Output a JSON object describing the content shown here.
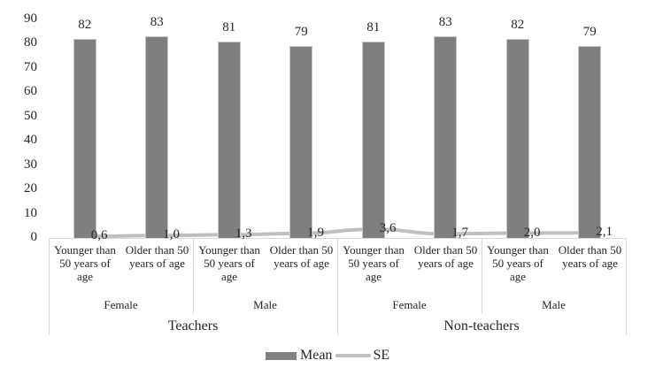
{
  "chart_data": {
    "type": "bar",
    "title": "",
    "xlabel": "",
    "ylabel": "",
    "ylim": [
      0,
      90
    ],
    "yticks": [
      0,
      10,
      20,
      30,
      40,
      50,
      60,
      70,
      80,
      90
    ],
    "grid": false,
    "legend_position": "bottom",
    "categories": [
      "Younger than 50 years of age",
      "Older than 50 years of age",
      "Younger than 50 years of age",
      "Older than 50 years of age",
      "Younger than 50 years of age",
      "Older than 50 years of age",
      "Younger than 50 years of age",
      "Older than 50 years of age"
    ],
    "category_lines": [
      [
        "Younger than",
        "50 years of",
        "age"
      ],
      [
        "Older than 50",
        "years of age"
      ],
      [
        "Younger than",
        "50 years of",
        "age"
      ],
      [
        "Older than 50",
        "years of age"
      ],
      [
        "Younger than",
        "50 years of",
        "age"
      ],
      [
        "Older than 50",
        "years of age"
      ],
      [
        "Younger than",
        "50 years of",
        "age"
      ],
      [
        "Older than 50",
        "years of age"
      ]
    ],
    "gender_groups": [
      "Female",
      "Male",
      "Female",
      "Male"
    ],
    "top_groups": [
      "Teachers",
      "Non-teachers"
    ],
    "series": [
      {
        "name": "Mean",
        "type": "bar",
        "color": "#7f7f7f",
        "values": [
          82,
          83,
          81,
          79,
          81,
          83,
          82,
          79
        ],
        "labels": [
          "82",
          "83",
          "81",
          "79",
          "81",
          "83",
          "82",
          "79"
        ]
      },
      {
        "name": "SE",
        "type": "line",
        "color": "#bfbfbf",
        "values": [
          0.6,
          1.0,
          1.3,
          1.9,
          3.6,
          1.7,
          2.0,
          2.1
        ],
        "labels": [
          "0,6",
          "1,0",
          "1,3",
          "1,9",
          "3,6",
          "1,7",
          "2,0",
          "2,1"
        ]
      }
    ]
  },
  "legend": {
    "mean": "Mean",
    "se": "SE"
  }
}
